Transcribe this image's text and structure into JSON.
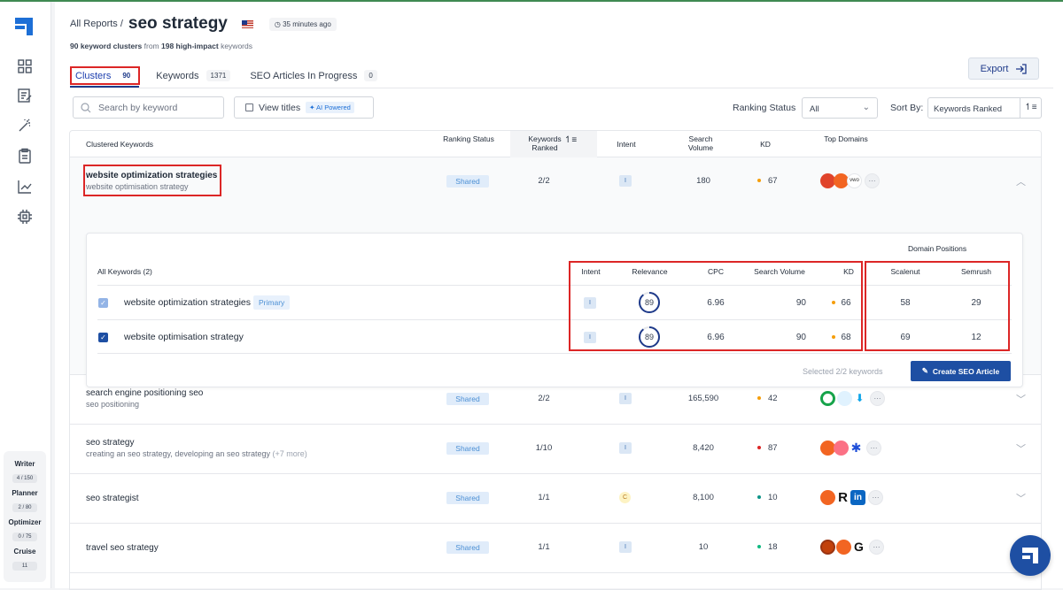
{
  "sidebar": {
    "nav": [
      "dashboard-icon",
      "writer-icon",
      "magic-wand-icon",
      "clipboard-icon",
      "chart-icon",
      "chip-icon"
    ],
    "usage": [
      {
        "label": "Writer",
        "value": "4 / 150"
      },
      {
        "label": "Planner",
        "value": "2 / 80"
      },
      {
        "label": "Optimizer",
        "value": "0 / 75"
      },
      {
        "label": "Cruise",
        "value": "11"
      }
    ]
  },
  "header": {
    "breadcrumb_parent": "All Reports /",
    "title": "seo strategy",
    "time_ago": "35 minutes ago",
    "subtitle_clusters": "90 keyword clusters",
    "subtitle_from": " from ",
    "subtitle_count": "198 high-impact",
    "subtitle_tail": " keywords"
  },
  "tabs": [
    {
      "label": "Clusters",
      "count": "90"
    },
    {
      "label": "Keywords",
      "count": "1371"
    },
    {
      "label": "SEO Articles In Progress",
      "count": "0"
    }
  ],
  "toolbar": {
    "export_label": "Export",
    "search_placeholder": "Search by keyword",
    "view_titles_label": "View titles",
    "ai_badge": "AI Powered",
    "ranking_status_label": "Ranking Status",
    "ranking_status_value": "All",
    "sort_label": "Sort By:",
    "sort_value": "Keywords Ranked"
  },
  "table": {
    "columns": {
      "clustered": "Clustered Keywords",
      "ranking_status": "Ranking Status",
      "keywords_ranked": "Keywords Ranked",
      "intent": "Intent",
      "search_volume": "Search Volume",
      "kd": "KD",
      "top_domains": "Top Domains"
    },
    "rows": [
      {
        "keyword": "website optimization strategies",
        "sub": "website optimisation strategy",
        "status": "Shared",
        "ranked": "2/2",
        "intent": "I",
        "volume": "180",
        "kd": "67",
        "kd_color": "#f59e0b"
      },
      {
        "keyword": "search engine positioning seo",
        "sub": "seo positioning",
        "status": "Shared",
        "ranked": "2/2",
        "intent": "I",
        "volume": "165,590",
        "kd": "42",
        "kd_color": "#f59e0b"
      },
      {
        "keyword": "seo strategy",
        "sub": "creating an seo strategy, developing an seo strategy",
        "sub_more": "(+7 more)",
        "status": "Shared",
        "ranked": "1/10",
        "intent": "I",
        "volume": "8,420",
        "kd": "87",
        "kd_color": "#dc2626"
      },
      {
        "keyword": "seo strategist",
        "sub": "",
        "status": "Shared",
        "ranked": "1/1",
        "intent": "C",
        "volume": "8,100",
        "kd": "10",
        "kd_color": "#0d9488"
      },
      {
        "keyword": "travel seo strategy",
        "sub": "",
        "status": "Shared",
        "ranked": "1/1",
        "intent": "I",
        "volume": "10",
        "kd": "18",
        "kd_color": "#10b981"
      }
    ]
  },
  "detail": {
    "domain_positions_label": "Domain Positions",
    "all_keywords_label": "All Keywords (2)",
    "columns": {
      "intent": "Intent",
      "relevance": "Relevance",
      "cpc": "CPC",
      "search_volume": "Search Volume",
      "kd": "KD",
      "scalenut": "Scalenut",
      "semrush": "Semrush"
    },
    "primary_badge": "Primary",
    "rows": [
      {
        "keyword": "website optimization strategies",
        "intent": "I",
        "relevance": "89",
        "relevance_fraction": 0.89,
        "cpc": "6.96",
        "volume": "90",
        "kd": "66",
        "kd_color": "#f59e0b",
        "scalenut": "58",
        "semrush": "29"
      },
      {
        "keyword": "website optimisation strategy",
        "intent": "I",
        "relevance": "89",
        "relevance_fraction": 0.89,
        "cpc": "6.96",
        "volume": "90",
        "kd": "68",
        "kd_color": "#f59e0b",
        "scalenut": "69",
        "semrush": "12"
      }
    ],
    "selected_note": "Selected 2/2 keywords",
    "create_button": "Create SEO Article"
  }
}
